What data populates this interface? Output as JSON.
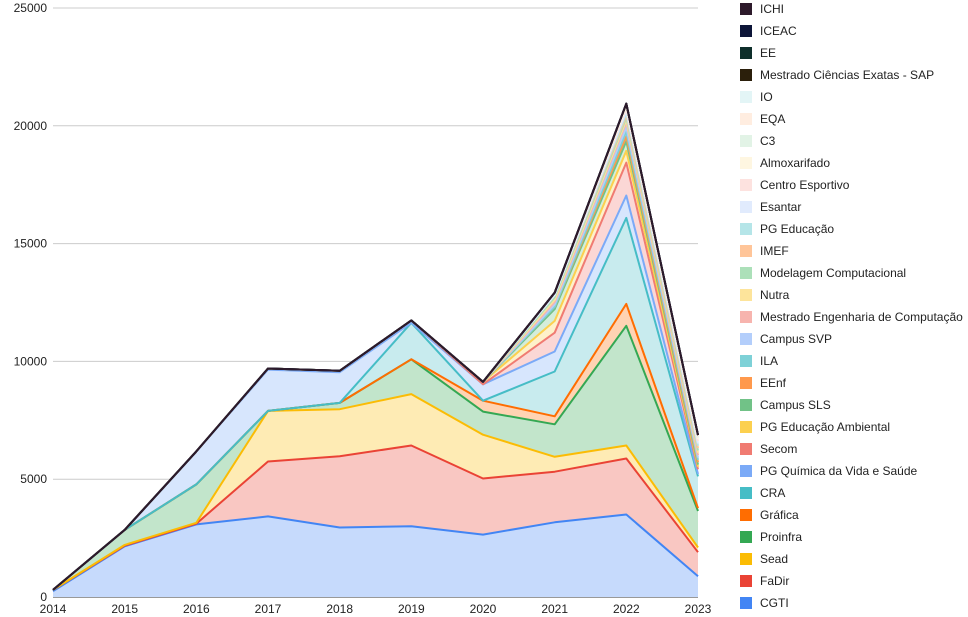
{
  "chart_data": {
    "type": "area",
    "stacked": true,
    "x": [
      "2014",
      "2015",
      "2016",
      "2017",
      "2018",
      "2019",
      "2020",
      "2021",
      "2022",
      "2023"
    ],
    "ylim": [
      0,
      25000
    ],
    "yticks": [
      "0",
      "5000",
      "10000",
      "15000",
      "20000",
      "25000"
    ],
    "grid": true,
    "legend_position": "right",
    "series": [
      {
        "name": "CGTI",
        "color": "#4285f4",
        "values": [
          250,
          2150,
          3080,
          3420,
          2950,
          3000,
          2650,
          3170,
          3500,
          880
        ]
      },
      {
        "name": "FaDir",
        "color": "#ea4335",
        "values": [
          50,
          30,
          30,
          2330,
          3020,
          3430,
          2380,
          2150,
          2380,
          1020
        ]
      },
      {
        "name": "Sead",
        "color": "#fbbc04",
        "values": [
          0,
          30,
          40,
          2150,
          2000,
          2180,
          1860,
          630,
          550,
          200
        ]
      },
      {
        "name": "Proinfra",
        "color": "#34a853",
        "values": [
          0,
          640,
          1630,
          0,
          270,
          1480,
          980,
          1380,
          5080,
          1550
        ]
      },
      {
        "name": "Gráfica",
        "color": "#ff6d01",
        "values": [
          0,
          0,
          0,
          0,
          0,
          0,
          460,
          340,
          930,
          120
        ]
      },
      {
        "name": "CRA",
        "color": "#46bdc6",
        "values": [
          0,
          0,
          0,
          0,
          0,
          1550,
          0,
          1900,
          3650,
          1350
        ]
      },
      {
        "name": "PG Química da Vida e Saúde",
        "color": "#7baaf7",
        "values": [
          0,
          0,
          1400,
          1750,
          1300,
          0,
          700,
          850,
          950,
          100
        ]
      },
      {
        "name": "Secom",
        "color": "#f07b72",
        "values": [
          0,
          0,
          0,
          50,
          60,
          100,
          0,
          800,
          1400,
          200
        ]
      },
      {
        "name": "PG Educação Ambiental",
        "color": "#fcd04f",
        "values": [
          0,
          0,
          0,
          0,
          0,
          0,
          100,
          500,
          500,
          100
        ]
      },
      {
        "name": "Campus SLS",
        "color": "#71c287",
        "values": [
          0,
          0,
          0,
          0,
          0,
          0,
          0,
          500,
          400,
          100
        ]
      },
      {
        "name": "EEnf",
        "color": "#ff994d",
        "values": [
          0,
          0,
          0,
          0,
          0,
          0,
          0,
          100,
          200,
          100
        ]
      },
      {
        "name": "ILA",
        "color": "#7ed1d7",
        "values": [
          0,
          0,
          0,
          0,
          0,
          0,
          0,
          0,
          200,
          100
        ]
      },
      {
        "name": "Campus SVP",
        "color": "#b3cefb",
        "values": [
          0,
          0,
          0,
          0,
          0,
          0,
          0,
          100,
          200,
          100
        ]
      },
      {
        "name": "Mestrado Engenharia de Computação",
        "color": "#f7b4ae",
        "values": [
          0,
          0,
          0,
          0,
          0,
          0,
          0,
          100,
          200,
          100
        ]
      },
      {
        "name": "Nutra",
        "color": "#fde49b",
        "values": [
          0,
          0,
          0,
          0,
          0,
          0,
          0,
          100,
          100,
          100
        ]
      },
      {
        "name": "Modelagem Computacional",
        "color": "#ace0b9",
        "values": [
          0,
          0,
          0,
          0,
          0,
          0,
          0,
          100,
          100,
          100
        ]
      },
      {
        "name": "IMEF",
        "color": "#ffc599",
        "values": [
          0,
          0,
          0,
          0,
          0,
          0,
          0,
          100,
          100,
          100
        ]
      },
      {
        "name": "PG Educação",
        "color": "#b5e5e8",
        "values": [
          0,
          0,
          0,
          0,
          0,
          0,
          0,
          0,
          100,
          100
        ]
      },
      {
        "name": "Esantar",
        "color": "#e1ebfd",
        "values": [
          0,
          0,
          0,
          0,
          0,
          0,
          0,
          0,
          100,
          100
        ]
      },
      {
        "name": "Centro Esportivo",
        "color": "#fde2df",
        "values": [
          0,
          0,
          0,
          0,
          0,
          0,
          0,
          100,
          100,
          100
        ]
      },
      {
        "name": "Almoxarifado",
        "color": "#fef6e1",
        "values": [
          0,
          0,
          0,
          0,
          0,
          0,
          0,
          0,
          100,
          100
        ]
      },
      {
        "name": "C3",
        "color": "#e2f3e6",
        "values": [
          0,
          0,
          0,
          0,
          0,
          0,
          0,
          0,
          100,
          50
        ]
      },
      {
        "name": "EQA",
        "color": "#ffede0",
        "values": [
          0,
          0,
          0,
          0,
          0,
          0,
          0,
          0,
          0,
          50
        ]
      },
      {
        "name": "IO",
        "color": "#e3f5f6",
        "values": [
          0,
          0,
          0,
          0,
          0,
          0,
          0,
          0,
          0,
          50
        ]
      },
      {
        "name": "Mestrado Ciências Exatas - SAP",
        "color": "#2b1f0b",
        "values": [
          0,
          0,
          0,
          0,
          0,
          0,
          0,
          0,
          0,
          0
        ]
      },
      {
        "name": "EE",
        "color": "#0e2f2b",
        "values": [
          0,
          0,
          0,
          0,
          0,
          0,
          0,
          0,
          0,
          0
        ]
      },
      {
        "name": "ICEAC",
        "color": "#0d1538",
        "values": [
          0,
          0,
          0,
          0,
          0,
          0,
          0,
          0,
          0,
          0
        ]
      },
      {
        "name": "ICHI",
        "color": "#2d1a2b",
        "values": [
          0,
          0,
          0,
          0,
          0,
          0,
          0,
          0,
          0,
          0
        ]
      }
    ]
  }
}
